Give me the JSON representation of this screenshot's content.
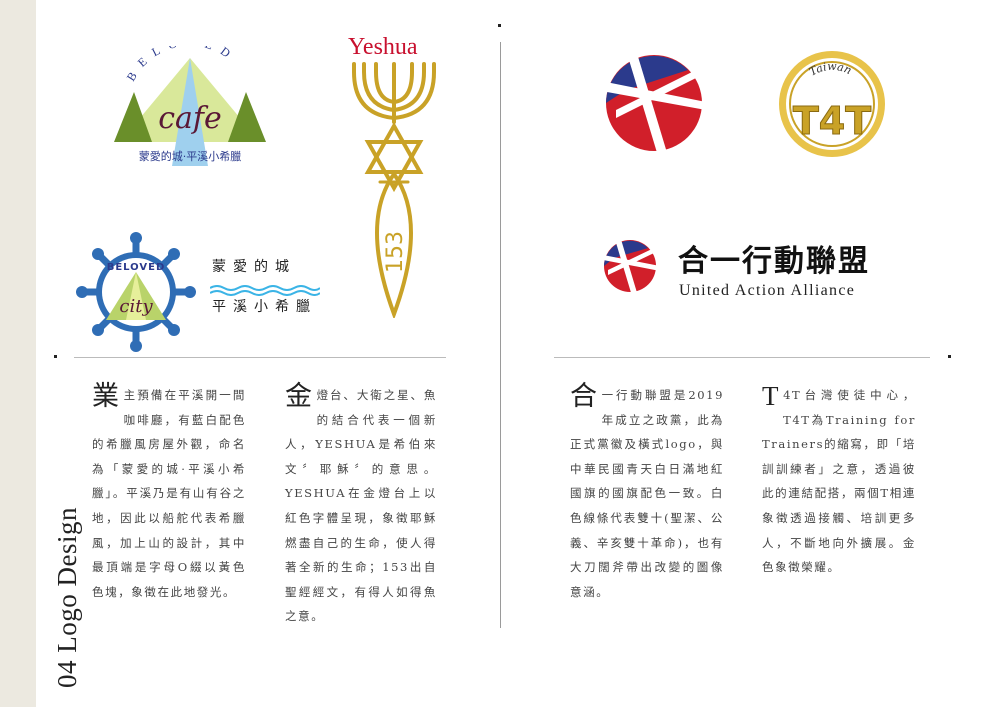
{
  "section_title": "04 Logo Design",
  "logos": {
    "cafe": {
      "arc_text": "BELOVED",
      "script_text": "cafe",
      "bottom_text": "蒙愛的城·平溪小希臘"
    },
    "city": {
      "badge_top": "BELOVED",
      "badge_script": "city",
      "line1": "蒙愛的城",
      "line2": "平溪小希臘"
    },
    "yeshua": {
      "title": "Yeshua",
      "number": "153"
    },
    "t4t": {
      "arc_text": "Taiwan",
      "mark": "T4T"
    },
    "alliance": {
      "zh": "合一行動聯盟",
      "en": "United Action Alliance"
    }
  },
  "paragraphs": {
    "p1": {
      "initial": "業",
      "text": "主預備在平溪開一間咖啡廳，有藍白配色的希臘風房屋外觀，命名為「蒙愛的城·平溪小希臘」。平溪乃是有山有谷之地，因此以船舵代表希臘風，加上山的設計，其中最頂端是字母O綴以黃色色塊，象徵在此地發光。"
    },
    "p2": {
      "initial": "金",
      "text": "燈台、大衛之星、魚的結合代表一個新人，YESHUA是希伯來文〞耶穌〞的意思。YESHUA在金燈台上以紅色字體呈現，象徵耶穌燃盡自己的生命，使人得著全新的生命；153出自聖經經文，有得人如得魚之意。"
    },
    "p3": {
      "initial": "合",
      "text": "一行動聯盟是2019年成立之政黨，此為正式黨徽及橫式logo，與中華民國青天白日滿地紅國旗的國旗配色一致。白色線條代表雙十(聖潔、公義、辛亥雙十革命)，也有大刀闊斧帶出改變的圖像意涵。"
    },
    "p4": {
      "initial": "T",
      "text": "4T台灣使徒中心，T4T為Training for Trainers的縮寫，即「培訓訓練者」之意，透過彼此的連結配搭，兩個T相連象徵透過接觸、培訓更多人，不斷地向外擴展。金色象徵榮耀。"
    }
  },
  "colors": {
    "red": "#c8102e",
    "blue": "#2b3a8c",
    "gold": "#c9a227",
    "green": "#6a8f2a"
  }
}
